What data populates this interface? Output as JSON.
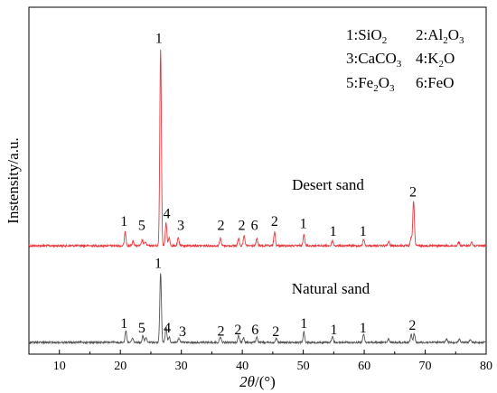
{
  "chart_data": {
    "type": "line",
    "xlabel_italic": "2θ",
    "xlabel_unit": "/(°)",
    "ylabel": "Instensity/a.u.",
    "xlim": [
      5,
      80
    ],
    "x_ticks": [
      "10",
      "20",
      "30",
      "40",
      "50",
      "60",
      "70",
      "80"
    ],
    "x_tick_values": [
      10,
      20,
      30,
      40,
      50,
      60,
      70,
      80
    ],
    "grid": false,
    "legend": {
      "placement": "top-right",
      "entries": [
        {
          "id": "1",
          "label": "1:SiO",
          "sub": "2"
        },
        {
          "id": "2",
          "label": "2:Al",
          "sub": "2",
          "label2": "O",
          "sub2": "3"
        },
        {
          "id": "3",
          "label": "3:CaCO",
          "sub": "3"
        },
        {
          "id": "4",
          "label": "4:K",
          "sub": "2",
          "label2": "O",
          "sub2": ""
        },
        {
          "id": "5",
          "label": "5:Fe",
          "sub": "2",
          "label2": "O",
          "sub2": "3"
        },
        {
          "id": "6",
          "label": "6:FeO",
          "sub": ""
        }
      ]
    },
    "series": [
      {
        "name": "Desert sand",
        "color": "#e8393f",
        "baseline": 0.0,
        "peaks": [
          {
            "x": 20.8,
            "h": 0.07
          },
          {
            "x": 22.1,
            "h": 0.025
          },
          {
            "x": 23.6,
            "h": 0.03
          },
          {
            "x": 24.1,
            "h": 0.02
          },
          {
            "x": 26.6,
            "h": 1.0
          },
          {
            "x": 27.5,
            "h": 0.115
          },
          {
            "x": 28.0,
            "h": 0.04
          },
          {
            "x": 29.5,
            "h": 0.04
          },
          {
            "x": 36.4,
            "h": 0.04
          },
          {
            "x": 39.4,
            "h": 0.04
          },
          {
            "x": 40.3,
            "h": 0.05
          },
          {
            "x": 42.4,
            "h": 0.035
          },
          {
            "x": 45.3,
            "h": 0.07
          },
          {
            "x": 50.1,
            "h": 0.06
          },
          {
            "x": 54.8,
            "h": 0.025
          },
          {
            "x": 59.9,
            "h": 0.035
          },
          {
            "x": 64.0,
            "h": 0.02
          },
          {
            "x": 67.7,
            "h": 0.04
          },
          {
            "x": 68.1,
            "h": 0.23
          },
          {
            "x": 75.5,
            "h": 0.02
          },
          {
            "x": 77.6,
            "h": 0.02
          }
        ],
        "peak_labels": [
          {
            "x": 20.6,
            "text": "1",
            "level": 0.1
          },
          {
            "x": 23.5,
            "text": "5",
            "level": 0.08
          },
          {
            "x": 27.6,
            "text": "4",
            "level": 0.14
          },
          {
            "x": 29.9,
            "text": "3",
            "level": 0.08
          },
          {
            "x": 26.3,
            "text": "1",
            "level": 1.03
          },
          {
            "x": 36.5,
            "text": "2",
            "level": 0.08
          },
          {
            "x": 39.9,
            "text": "2",
            "level": 0.08
          },
          {
            "x": 42.0,
            "text": "6",
            "level": 0.08
          },
          {
            "x": 45.3,
            "text": "2",
            "level": 0.1
          },
          {
            "x": 50.0,
            "text": "1",
            "level": 0.09
          },
          {
            "x": 54.9,
            "text": "1",
            "level": 0.05
          },
          {
            "x": 59.8,
            "text": "1",
            "level": 0.05
          },
          {
            "x": 68.0,
            "text": "2",
            "level": 0.25
          }
        ]
      },
      {
        "name": "Natural sand",
        "color": "#555555",
        "baseline": 0.0,
        "peaks": [
          {
            "x": 20.9,
            "h": 0.17
          },
          {
            "x": 22.0,
            "h": 0.07
          },
          {
            "x": 23.7,
            "h": 0.09
          },
          {
            "x": 24.2,
            "h": 0.07
          },
          {
            "x": 26.6,
            "h": 1.0
          },
          {
            "x": 27.5,
            "h": 0.22
          },
          {
            "x": 28.0,
            "h": 0.08
          },
          {
            "x": 29.6,
            "h": 0.06
          },
          {
            "x": 36.4,
            "h": 0.08
          },
          {
            "x": 39.4,
            "h": 0.1
          },
          {
            "x": 40.2,
            "h": 0.07
          },
          {
            "x": 42.4,
            "h": 0.08
          },
          {
            "x": 45.6,
            "h": 0.06
          },
          {
            "x": 50.1,
            "h": 0.15
          },
          {
            "x": 54.8,
            "h": 0.08
          },
          {
            "x": 59.9,
            "h": 0.12
          },
          {
            "x": 64.0,
            "h": 0.05
          },
          {
            "x": 67.7,
            "h": 0.12
          },
          {
            "x": 68.2,
            "h": 0.13
          },
          {
            "x": 73.5,
            "h": 0.05
          },
          {
            "x": 75.6,
            "h": 0.05
          },
          {
            "x": 77.4,
            "h": 0.04
          }
        ],
        "peak_labels": [
          {
            "x": 20.6,
            "text": "1",
            "level": 0.21
          },
          {
            "x": 23.5,
            "text": "5",
            "level": 0.14
          },
          {
            "x": 27.7,
            "text": "4",
            "level": 0.14
          },
          {
            "x": 30.2,
            "text": "3",
            "level": 0.09
          },
          {
            "x": 26.2,
            "text": "1",
            "level": 1.07
          },
          {
            "x": 36.5,
            "text": "2",
            "level": 0.1
          },
          {
            "x": 39.3,
            "text": "2",
            "level": 0.12
          },
          {
            "x": 42.1,
            "text": "6",
            "level": 0.12
          },
          {
            "x": 45.5,
            "text": "2",
            "level": 0.09
          },
          {
            "x": 50.1,
            "text": "1",
            "level": 0.21
          },
          {
            "x": 55.0,
            "text": "1",
            "level": 0.12
          },
          {
            "x": 59.8,
            "text": "1",
            "level": 0.14
          },
          {
            "x": 67.9,
            "text": "2",
            "level": 0.18
          }
        ]
      }
    ]
  }
}
